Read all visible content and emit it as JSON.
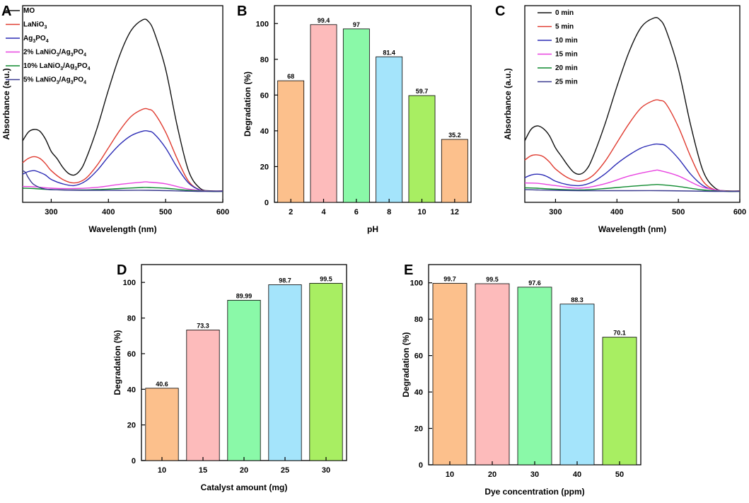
{
  "colors": {
    "bar_palette": [
      "#FCC08C",
      "#FDBBBB",
      "#8AF9A8",
      "#A4E4FB",
      "#A8EE62"
    ]
  },
  "chart_data": [
    {
      "panel": "A",
      "type": "line",
      "xlabel": "Wavelength (nm)",
      "ylabel": "Absorbance (a.u.)",
      "xlim": [
        250,
        600
      ],
      "ylim": [
        0,
        1
      ],
      "xticks": [
        300,
        400,
        500,
        600
      ],
      "yticks": [],
      "grid": false,
      "legend_position": "top-left",
      "series": [
        {
          "name": "MO",
          "legend": [
            "MO"
          ],
          "color": "#111111",
          "x": [
            250,
            260,
            270,
            280,
            290,
            300,
            310,
            320,
            330,
            340,
            350,
            360,
            380,
            400,
            420,
            440,
            460,
            470,
            480,
            500,
            520,
            540,
            560,
            580,
            600
          ],
          "y": [
            0.29,
            0.34,
            0.355,
            0.345,
            0.3,
            0.23,
            0.19,
            0.14,
            0.105,
            0.095,
            0.12,
            0.18,
            0.36,
            0.58,
            0.78,
            0.92,
            0.98,
            0.97,
            0.91,
            0.7,
            0.38,
            0.12,
            0.02,
            0.005,
            0.005
          ]
        },
        {
          "name": "LaNiO3",
          "legend": [
            "LaNiO",
            "3",
            ""
          ],
          "color": "#E03C31",
          "x": [
            250,
            260,
            270,
            280,
            290,
            300,
            320,
            340,
            360,
            380,
            400,
            420,
            440,
            460,
            470,
            480,
            500,
            520,
            540,
            560,
            580,
            600
          ],
          "y": [
            0.165,
            0.19,
            0.2,
            0.19,
            0.16,
            0.12,
            0.07,
            0.05,
            0.075,
            0.15,
            0.25,
            0.35,
            0.43,
            0.47,
            0.47,
            0.45,
            0.34,
            0.19,
            0.06,
            0.01,
            0.004,
            0.004
          ]
        },
        {
          "name": "Ag3PO4",
          "legend": [
            "Ag",
            "3",
            "PO",
            "4",
            ""
          ],
          "color": "#2B2BB5",
          "x": [
            250,
            260,
            270,
            280,
            290,
            300,
            320,
            340,
            360,
            380,
            400,
            420,
            440,
            460,
            470,
            480,
            500,
            520,
            540,
            560,
            580,
            600
          ],
          "y": [
            0.1,
            0.115,
            0.12,
            0.11,
            0.095,
            0.07,
            0.045,
            0.035,
            0.06,
            0.12,
            0.2,
            0.27,
            0.32,
            0.345,
            0.345,
            0.33,
            0.25,
            0.14,
            0.05,
            0.01,
            0.004,
            0.004
          ]
        },
        {
          "name": "2% LaNiO3/Ag3PO4",
          "legend": [
            "2% LaNiO",
            "3",
            "/Ag",
            "3",
            "PO",
            "4"
          ],
          "color": "#E843E0",
          "x": [
            250,
            270,
            300,
            340,
            380,
            420,
            460,
            470,
            500,
            540,
            580,
            600
          ],
          "y": [
            0.03,
            0.028,
            0.02,
            0.018,
            0.025,
            0.042,
            0.055,
            0.055,
            0.045,
            0.015,
            0.003,
            0.003
          ]
        },
        {
          "name": "10% LaNiO3/Ag3PO4",
          "legend": [
            "10% LaNiO",
            "3",
            "/Ag",
            "3",
            "PO",
            "4"
          ],
          "color": "#0E8A2E",
          "x": [
            250,
            270,
            300,
            340,
            380,
            420,
            460,
            470,
            500,
            540,
            580,
            600
          ],
          "y": [
            0.02,
            0.018,
            0.012,
            0.01,
            0.012,
            0.018,
            0.024,
            0.024,
            0.02,
            0.008,
            0.002,
            0.002
          ]
        },
        {
          "name": "5% LaNiO3/Ag3PO4",
          "legend": [
            "5% LaNiO",
            "3",
            "/Ag",
            "3",
            "PO",
            "4"
          ],
          "color": "#3A3A8F",
          "x": [
            250,
            255,
            260,
            270,
            290,
            320,
            360,
            420,
            470,
            520,
            560,
            600
          ],
          "y": [
            0.12,
            0.11,
            0.08,
            0.04,
            0.015,
            0.01,
            0.008,
            0.008,
            0.008,
            0.005,
            0.002,
            0.002
          ]
        }
      ]
    },
    {
      "panel": "B",
      "type": "bar",
      "xlabel": "pH",
      "ylabel": "Degradation (%)",
      "ylim": [
        0,
        110
      ],
      "yticks": [
        0,
        20,
        40,
        60,
        80,
        100
      ],
      "categories": [
        "2",
        "4",
        "6",
        "8",
        "10",
        "12"
      ],
      "values": [
        68,
        99.4,
        97,
        81.4,
        59.7,
        35.2
      ],
      "labels": [
        "68",
        "99.4",
        "97",
        "81.4",
        "59.7",
        "35.2"
      ],
      "color_index": [
        0,
        1,
        2,
        3,
        4,
        0
      ]
    },
    {
      "panel": "C",
      "type": "line",
      "xlabel": "Wavelength (nm)",
      "ylabel": "Absorbance (a.u.)",
      "xlim": [
        250,
        600
      ],
      "ylim": [
        0,
        1
      ],
      "xticks": [
        300,
        400,
        500,
        600
      ],
      "yticks": [],
      "grid": false,
      "legend_position": "top-left",
      "series": [
        {
          "name": "0 min",
          "legend": [
            "0 min"
          ],
          "color": "#111111",
          "x": [
            250,
            260,
            270,
            280,
            290,
            300,
            310,
            320,
            330,
            340,
            350,
            360,
            380,
            400,
            420,
            440,
            460,
            470,
            480,
            500,
            520,
            540,
            560,
            580,
            600
          ],
          "y": [
            0.29,
            0.355,
            0.375,
            0.36,
            0.32,
            0.25,
            0.2,
            0.15,
            0.11,
            0.1,
            0.125,
            0.19,
            0.38,
            0.6,
            0.8,
            0.94,
            0.99,
            0.98,
            0.92,
            0.7,
            0.38,
            0.12,
            0.02,
            0.005,
            0.005
          ]
        },
        {
          "name": "5 min",
          "legend": [
            "5 min"
          ],
          "color": "#E03C31",
          "x": [
            250,
            260,
            270,
            280,
            290,
            300,
            320,
            340,
            360,
            380,
            400,
            420,
            440,
            460,
            470,
            480,
            500,
            520,
            540,
            560,
            580,
            600
          ],
          "y": [
            0.18,
            0.205,
            0.21,
            0.2,
            0.17,
            0.13,
            0.08,
            0.06,
            0.09,
            0.17,
            0.28,
            0.39,
            0.48,
            0.52,
            0.52,
            0.5,
            0.37,
            0.2,
            0.06,
            0.01,
            0.004,
            0.004
          ]
        },
        {
          "name": "10 min",
          "legend": [
            "10 min"
          ],
          "color": "#2B2BB5",
          "x": [
            250,
            260,
            270,
            280,
            290,
            300,
            320,
            340,
            360,
            380,
            400,
            420,
            440,
            460,
            470,
            480,
            500,
            520,
            540,
            560,
            580,
            600
          ],
          "y": [
            0.08,
            0.095,
            0.1,
            0.095,
            0.08,
            0.06,
            0.04,
            0.035,
            0.055,
            0.1,
            0.16,
            0.21,
            0.25,
            0.27,
            0.27,
            0.26,
            0.19,
            0.1,
            0.035,
            0.008,
            0.003,
            0.003
          ]
        },
        {
          "name": "15 min",
          "legend": [
            "15 min"
          ],
          "color": "#E843E0",
          "x": [
            250,
            270,
            300,
            340,
            380,
            420,
            460,
            470,
            500,
            540,
            580,
            600
          ],
          "y": [
            0.05,
            0.048,
            0.035,
            0.02,
            0.045,
            0.09,
            0.12,
            0.12,
            0.09,
            0.025,
            0.003,
            0.003
          ]
        },
        {
          "name": "20 min",
          "legend": [
            "20 min"
          ],
          "color": "#0E8A2E",
          "x": [
            250,
            270,
            300,
            340,
            380,
            420,
            460,
            470,
            500,
            540,
            580,
            600
          ],
          "y": [
            0.022,
            0.02,
            0.014,
            0.01,
            0.018,
            0.03,
            0.04,
            0.04,
            0.03,
            0.01,
            0.002,
            0.002
          ]
        },
        {
          "name": "25 min",
          "legend": [
            "25 min"
          ],
          "color": "#3A3A8F",
          "x": [
            250,
            270,
            300,
            340,
            380,
            420,
            470,
            520,
            560,
            600
          ],
          "y": [
            0.012,
            0.01,
            0.008,
            0.006,
            0.006,
            0.006,
            0.006,
            0.004,
            0.002,
            0.002
          ]
        }
      ]
    },
    {
      "panel": "D",
      "type": "bar",
      "xlabel": "Catalyst amount (mg)",
      "ylabel": "Degradation (%)",
      "ylim": [
        0,
        110
      ],
      "yticks": [
        0,
        20,
        40,
        60,
        80,
        100
      ],
      "categories": [
        "10",
        "15",
        "20",
        "25",
        "30"
      ],
      "values": [
        40.6,
        73.3,
        89.99,
        98.7,
        99.5
      ],
      "labels": [
        "40.6",
        "73.3",
        "89.99",
        "98.7",
        "99.5"
      ],
      "color_index": [
        0,
        1,
        2,
        3,
        4
      ]
    },
    {
      "panel": "E",
      "type": "bar",
      "xlabel": "Dye concentration (ppm)",
      "ylabel": "Degradation (%)",
      "ylim": [
        0,
        110
      ],
      "yticks": [
        0,
        20,
        40,
        60,
        80,
        100
      ],
      "categories": [
        "10",
        "20",
        "30",
        "40",
        "50"
      ],
      "values": [
        99.7,
        99.5,
        97.6,
        88.3,
        70.1
      ],
      "labels": [
        "99.7",
        "99.5",
        "97.6",
        "88.3",
        "70.1"
      ],
      "color_index": [
        0,
        1,
        2,
        3,
        4
      ]
    }
  ]
}
